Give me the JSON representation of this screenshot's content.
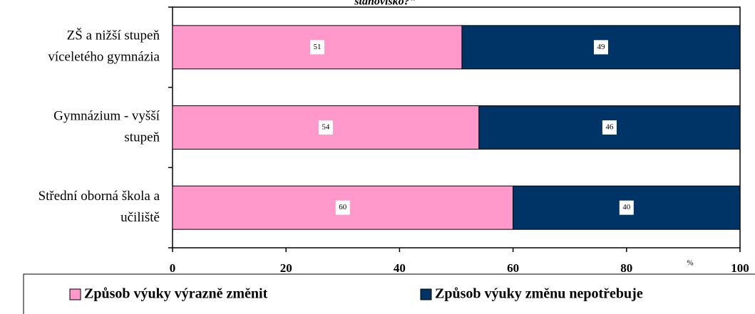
{
  "chart_data": {
    "type": "stacked-barh",
    "title": "stanovisko?“",
    "categories": [
      [
        "ZŠ a nižší stupeň",
        "víceletého gymnázia"
      ],
      [
        "Gymnázium - vyšší",
        "stupeň"
      ],
      [
        "Střední oborná škola a",
        "učiliště"
      ]
    ],
    "series": [
      {
        "name": "Způsob výuky výrazně změnit",
        "color": "#ff99cc",
        "values": [
          51,
          54,
          60
        ]
      },
      {
        "name": "Způsob výuky změnu nepotřebuje",
        "color": "#003366",
        "values": [
          49,
          46,
          40
        ]
      }
    ],
    "xlabel": "%",
    "xlim": [
      0,
      100
    ],
    "xticks": [
      0,
      20,
      40,
      60,
      80,
      100
    ]
  }
}
